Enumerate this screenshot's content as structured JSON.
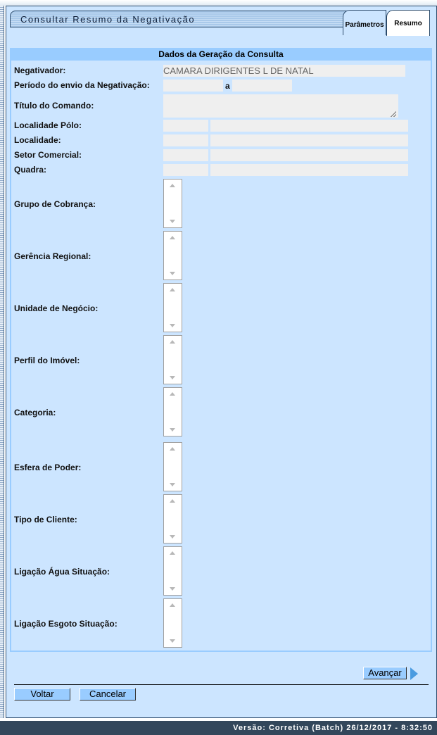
{
  "header": {
    "title": "Consultar Resumo da Negativação",
    "tabs": [
      {
        "label": "Parâmetros"
      },
      {
        "label": "Resumo"
      }
    ]
  },
  "section": {
    "title": "Dados da Geração da Consulta"
  },
  "fields": {
    "negativador": {
      "label": "Negativador:",
      "value": "CAMARA DIRIGENTES L DE NATAL"
    },
    "periodo": {
      "label": "Período do envio da Negativação:",
      "separator": "a",
      "start": "",
      "end": ""
    },
    "titulo": {
      "label": "Título do Comando:",
      "value": ""
    },
    "localidade_polo": {
      "label": "Localidade Pólo:"
    },
    "localidade": {
      "label": "Localidade:"
    },
    "setor": {
      "label": "Setor Comercial:"
    },
    "quadra": {
      "label": "Quadra:"
    }
  },
  "lists": [
    {
      "label": "Grupo de Cobrança:"
    },
    {
      "label": "Gerência Regional:"
    },
    {
      "label": "Unidade de Negócio:"
    },
    {
      "label": "Perfil do Imóvel:"
    },
    {
      "label": "Categoria:"
    },
    {
      "label": "Esfera de Poder:"
    },
    {
      "label": "Tipo de Cliente:"
    },
    {
      "label": "Ligação Água Situação:"
    },
    {
      "label": "Ligação Esgoto Situação:"
    }
  ],
  "buttons": {
    "avancar": "Avançar",
    "voltar": "Voltar",
    "cancelar": "Cancelar"
  },
  "footer": {
    "version": "Versão: Corretiva (Batch) 26/12/2017 - 8:32:50"
  }
}
